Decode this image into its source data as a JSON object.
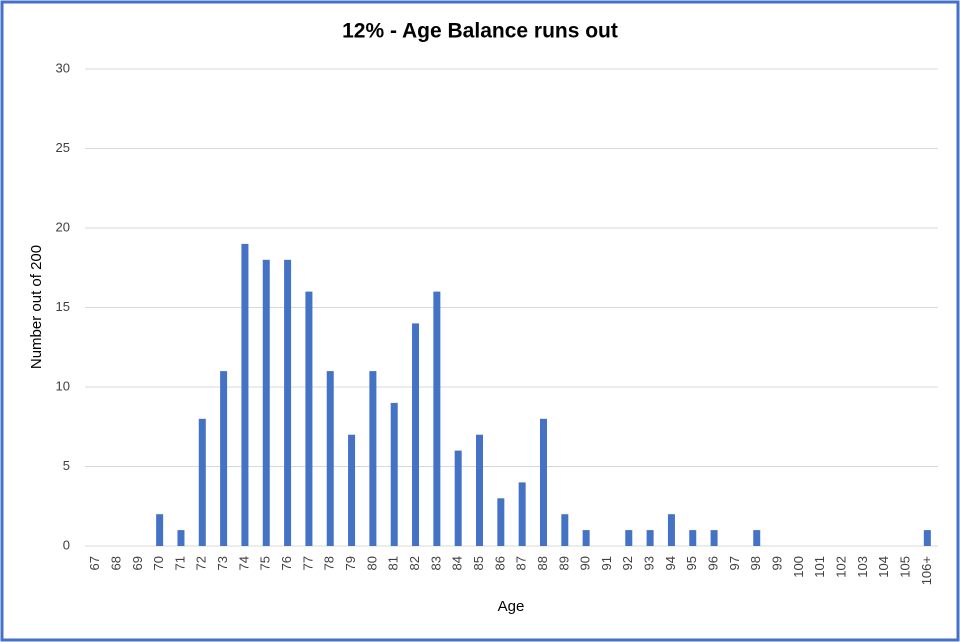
{
  "chart_data": {
    "type": "bar",
    "title": "12% - Age Balance runs out",
    "x_label": "Age",
    "y_label": "Number out of 200",
    "categories": [
      "67",
      "68",
      "69",
      "70",
      "71",
      "72",
      "73",
      "74",
      "75",
      "76",
      "77",
      "78",
      "79",
      "80",
      "81",
      "82",
      "83",
      "84",
      "85",
      "86",
      "87",
      "88",
      "89",
      "90",
      "91",
      "92",
      "93",
      "94",
      "95",
      "96",
      "97",
      "98",
      "99",
      "100",
      "101",
      "102",
      "103",
      "104",
      "105",
      "106+"
    ],
    "values": [
      0,
      0,
      0,
      2,
      1,
      8,
      11,
      19,
      18,
      18,
      16,
      11,
      7,
      11,
      9,
      14,
      16,
      6,
      7,
      3,
      4,
      8,
      2,
      1,
      0,
      1,
      1,
      2,
      1,
      1,
      0,
      1,
      0,
      0,
      0,
      0,
      0,
      0,
      0,
      1
    ],
    "color": "#4472c4",
    "ylim": [
      0,
      30
    ],
    "yticks": [
      0,
      5,
      10,
      15,
      20,
      25,
      30
    ],
    "grid": true
  }
}
